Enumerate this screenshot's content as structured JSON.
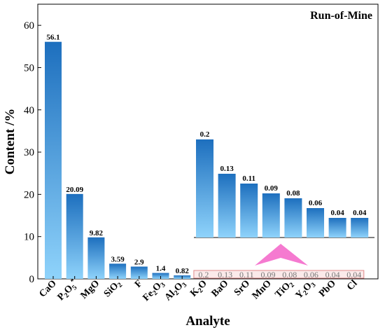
{
  "chart_data": {
    "type": "bar",
    "title": "Run-of-Mine",
    "xlabel": "Analyte",
    "ylabel": "Content /%",
    "ylim": [
      0,
      65
    ],
    "yticks": [
      0,
      10,
      20,
      30,
      40,
      50,
      60
    ],
    "grid": false,
    "colors": {
      "bar_top": "#1d6fbe",
      "bar_bottom": "#8fd3fb",
      "arrow": "#f57ad0",
      "zoom_box": "#e08a8a",
      "zoom_text": "#777777"
    },
    "categories": [
      {
        "name": "CaO",
        "base": "CaO",
        "sub": "",
        "post": ""
      },
      {
        "name": "P2O5*",
        "base": "P",
        "sub": "2",
        "post": "O",
        "sub2": "5",
        "sup": "*"
      },
      {
        "name": "MgO",
        "base": "MgO",
        "sub": "",
        "post": ""
      },
      {
        "name": "SiO2",
        "base": "SiO",
        "sub": "2",
        "post": ""
      },
      {
        "name": "F",
        "base": "F",
        "sub": "",
        "post": ""
      },
      {
        "name": "Fe2O3",
        "base": "Fe",
        "sub": "2",
        "post": "O",
        "sub2": "3"
      },
      {
        "name": "Al2O3",
        "base": "Al",
        "sub": "2",
        "post": "O",
        "sub2": "3"
      },
      {
        "name": "K2O",
        "base": "K",
        "sub": "2",
        "post": "O"
      },
      {
        "name": "BaO",
        "base": "BaO",
        "sub": "",
        "post": ""
      },
      {
        "name": "SrO",
        "base": "SrO",
        "sub": "",
        "post": ""
      },
      {
        "name": "MnO",
        "base": "MnO",
        "sub": "",
        "post": ""
      },
      {
        "name": "TiO2",
        "base": "TiO",
        "sub": "2",
        "post": ""
      },
      {
        "name": "Y2O3",
        "base": "Y",
        "sub": "2",
        "post": "O",
        "sub2": "3"
      },
      {
        "name": "PbO",
        "base": "PbO",
        "sub": "",
        "post": ""
      },
      {
        "name": "Cl",
        "base": "Cl",
        "sub": "",
        "post": ""
      }
    ],
    "values": [
      56.1,
      20.09,
      9.82,
      3.59,
      2.9,
      1.4,
      0.82,
      0.2,
      0.13,
      0.11,
      0.09,
      0.08,
      0.06,
      0.04,
      0.04
    ],
    "value_labels": [
      "56.1",
      "20.09",
      "9.82",
      "3.59",
      "2.9",
      "1.4",
      "0.82",
      "0.2",
      "0.13",
      "0.11",
      "0.09",
      "0.08",
      "0.06",
      "0.04",
      "0.04"
    ],
    "inset": {
      "description": "zoomed view of minor analytes",
      "categories": [
        "K2O",
        "BaO",
        "SrO",
        "MnO",
        "TiO2",
        "Y2O3",
        "PbO",
        "Cl"
      ],
      "values": [
        0.2,
        0.13,
        0.11,
        0.09,
        0.08,
        0.06,
        0.04,
        0.04
      ],
      "value_labels": [
        "0.2",
        "0.13",
        "0.11",
        "0.09",
        "0.08",
        "0.06",
        "0.04",
        "0.04"
      ],
      "ylim": [
        0,
        0.22
      ]
    }
  }
}
